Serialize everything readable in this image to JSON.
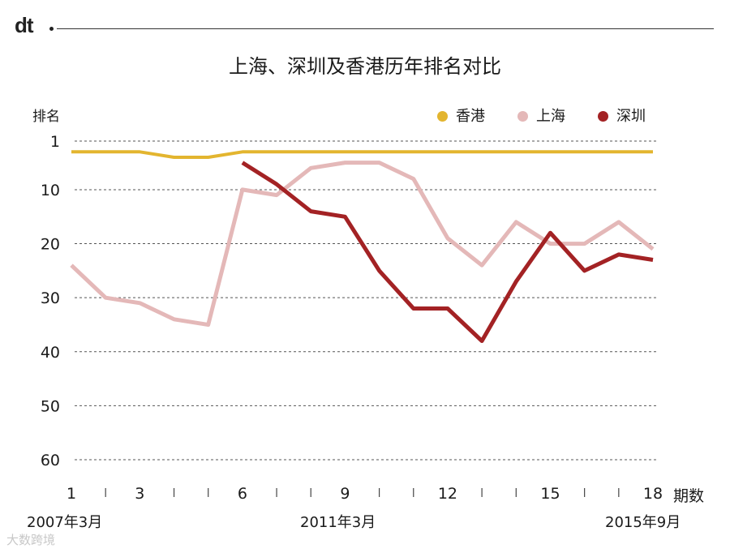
{
  "brand": "dt",
  "watermark": "大数跨境",
  "chart_data": {
    "type": "line",
    "title": "上海、深圳及香港历年排名对比",
    "ylabel": "排名",
    "xlabel": "期数",
    "ylim": [
      60,
      1
    ],
    "y_inverted": true,
    "yticks": [
      "1",
      "10",
      "20",
      "30",
      "40",
      "50",
      "60"
    ],
    "ytick_values": [
      1,
      10,
      20,
      30,
      40,
      50,
      60
    ],
    "x": [
      1,
      2,
      3,
      4,
      5,
      6,
      7,
      8,
      9,
      10,
      11,
      12,
      13,
      14,
      15,
      16,
      17,
      18
    ],
    "xticks": [
      "1",
      "3",
      "6",
      "9",
      "12",
      "15",
      "18"
    ],
    "xtick_values": [
      1,
      3,
      6,
      9,
      12,
      15,
      18
    ],
    "x_minor_ticks": [
      2,
      4,
      5,
      7,
      8,
      10,
      11,
      13,
      14,
      16,
      17
    ],
    "date_labels": [
      {
        "x": 1,
        "text": "2007年3月"
      },
      {
        "x": 9,
        "text": "2011年3月"
      },
      {
        "x": 18,
        "text": "2015年9月"
      }
    ],
    "grid": true,
    "legend_position": "top-right",
    "series": [
      {
        "name": "香港",
        "color": "#e3b52f",
        "values": [
          3,
          3,
          3,
          4,
          4,
          3,
          3,
          3,
          3,
          3,
          3,
          3,
          3,
          3,
          3,
          3,
          3,
          3
        ]
      },
      {
        "name": "上海",
        "color": "#e4b8b8",
        "values": [
          24,
          30,
          31,
          34,
          35,
          10,
          11,
          6,
          5,
          5,
          8,
          19,
          24,
          16,
          20,
          20,
          16,
          21
        ]
      },
      {
        "name": "深圳",
        "color": "#a32224",
        "values": [
          null,
          null,
          null,
          null,
          null,
          5,
          9,
          14,
          15,
          25,
          32,
          32,
          38,
          27,
          18,
          25,
          22,
          23
        ]
      }
    ]
  }
}
